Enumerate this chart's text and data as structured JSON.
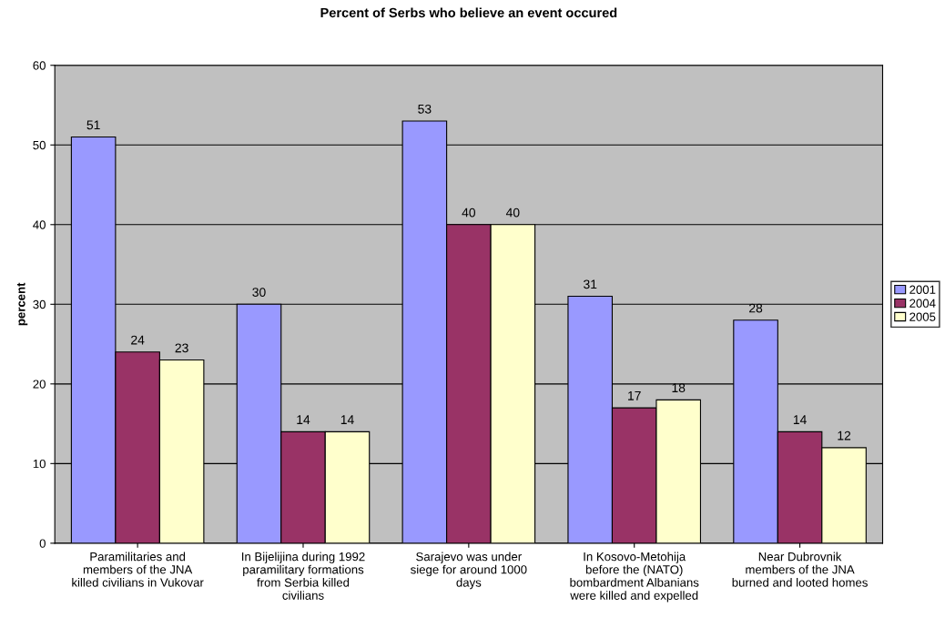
{
  "chart_data": {
    "type": "bar",
    "title": "Percent of Serbs who believe an event occured",
    "ylabel": "percent",
    "categories": [
      "Paramilitaries and\nmembers of the JNA\nkilled civilians in Vukovar",
      "In Bijelijina during 1992\nparamilitary formations\nfrom Serbia killed\ncivilians",
      "Sarajevo was under\nsiege for around 1000\ndays",
      "In Kosovo-Metohija\nbefore the (NATO)\nbombardment Albanians\nwere killed and expelled",
      "Near Dubrovnik\nmembers of the JNA\nburned and looted homes"
    ],
    "series": [
      {
        "name": "2001",
        "color": "#9999ff",
        "values": [
          51,
          30,
          53,
          31,
          28
        ]
      },
      {
        "name": "2004",
        "color": "#993366",
        "values": [
          24,
          14,
          40,
          17,
          14
        ]
      },
      {
        "name": "2005",
        "color": "#ffffcc",
        "values": [
          23,
          14,
          40,
          18,
          12
        ]
      }
    ],
    "ylim": [
      0,
      60
    ],
    "yticks": [
      0,
      10,
      20,
      30,
      40,
      50,
      60
    ],
    "grid": "y",
    "legend": "right",
    "data_labels": true
  }
}
